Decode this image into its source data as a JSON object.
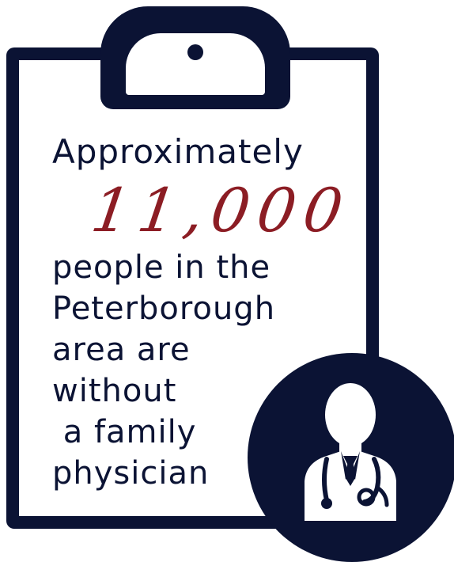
{
  "text": {
    "approximately": "Approximately",
    "number": "11,000",
    "lines": [
      "people in the",
      "Peterborough",
      "area are",
      "without",
      " a family",
      "physician"
    ]
  },
  "colors": {
    "navy": "#0b1334",
    "number_red": "#8c1d24"
  },
  "icons": {
    "clipboard": "clipboard-icon",
    "doctor": "doctor-icon"
  }
}
